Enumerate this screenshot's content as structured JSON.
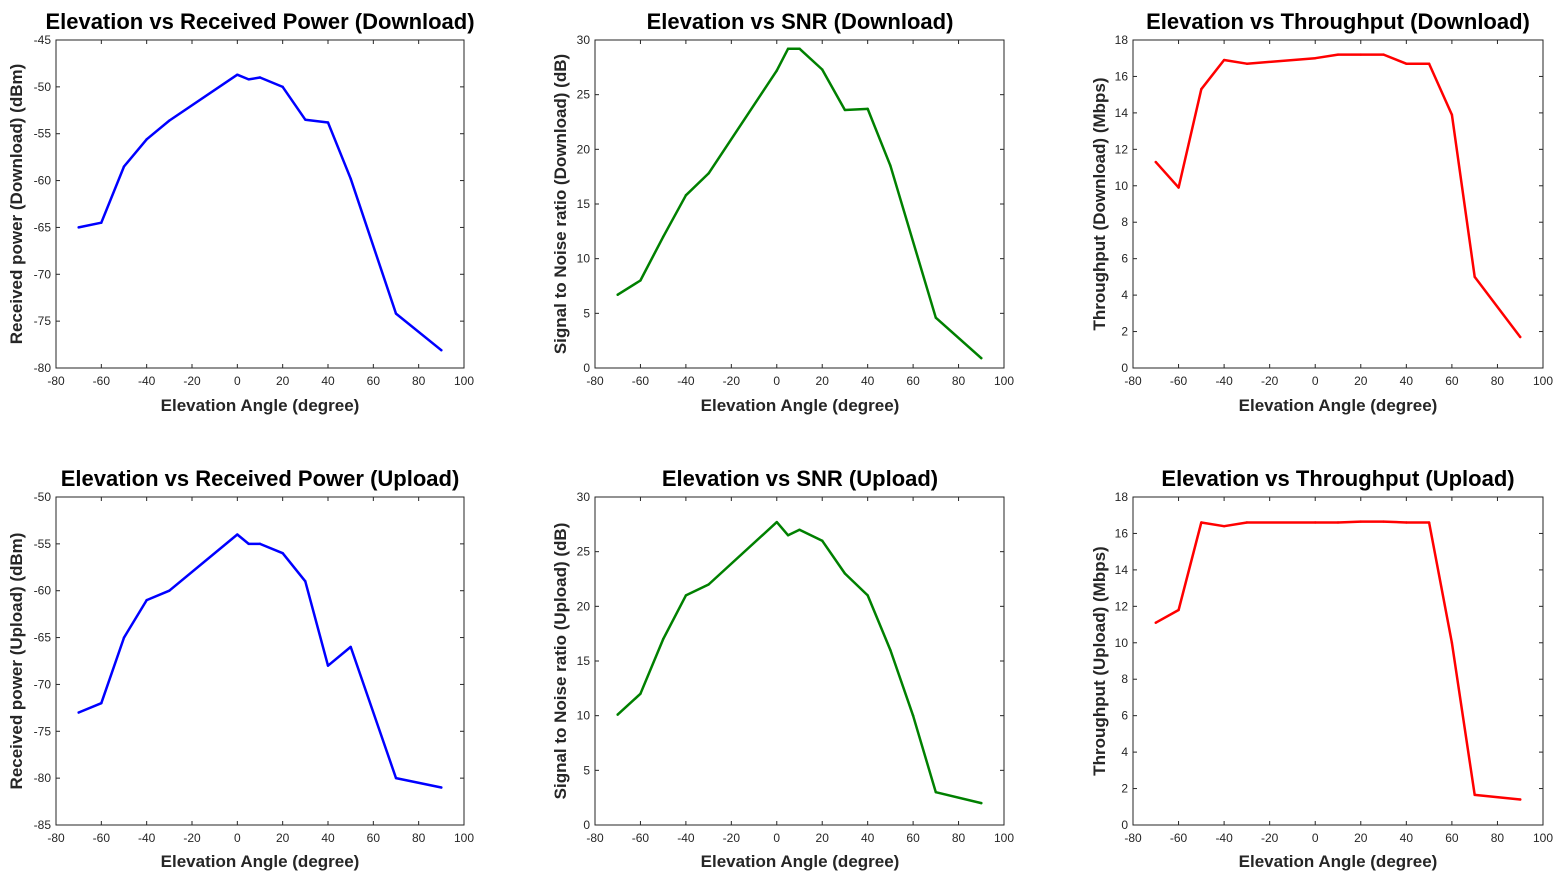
{
  "figure": {
    "background": "#ffffff"
  },
  "chart_data": [
    {
      "type": "line",
      "title": "Elevation vs Received Power (Download)",
      "xlabel": "Elevation Angle (degree)",
      "ylabel": "Received power (Download) (dBm)",
      "xlim": [
        -80,
        100
      ],
      "ylim": [
        -80,
        -45
      ],
      "xticks": [
        -80,
        -60,
        -40,
        -20,
        0,
        20,
        40,
        60,
        80,
        100
      ],
      "yticks": [
        -80,
        -75,
        -70,
        -65,
        -60,
        -55,
        -50,
        -45
      ],
      "grid": true,
      "color": "#0000ff",
      "x": [
        -70,
        -60,
        -50,
        -40,
        -30,
        0,
        5,
        10,
        20,
        30,
        40,
        50,
        70,
        90
      ],
      "y": [
        -65,
        -64.5,
        -58.5,
        -55.6,
        -53.6,
        -48.7,
        -49.2,
        -49,
        -50,
        -53.5,
        -53.8,
        -59.8,
        -74.2,
        -78.1
      ]
    },
    {
      "type": "line",
      "title": "Elevation vs SNR (Download)",
      "xlabel": "Elevation Angle (degree)",
      "ylabel": "Signal to Noise ratio (Download) (dB)",
      "xlim": [
        -80,
        100
      ],
      "ylim": [
        0,
        30
      ],
      "xticks": [
        -80,
        -60,
        -40,
        -20,
        0,
        20,
        40,
        60,
        80,
        100
      ],
      "yticks": [
        0,
        5,
        10,
        15,
        20,
        25,
        30
      ],
      "grid": true,
      "color": "#008000",
      "x": [
        -70,
        -60,
        -50,
        -40,
        -30,
        0,
        5,
        10,
        20,
        30,
        40,
        50,
        70,
        90
      ],
      "y": [
        6.7,
        8,
        12,
        15.8,
        17.8,
        27.2,
        29.2,
        29.2,
        27.3,
        23.6,
        23.7,
        18.5,
        4.6,
        0.9
      ]
    },
    {
      "type": "line",
      "title": "Elevation vs Throughput (Download)",
      "xlabel": "Elevation Angle (degree)",
      "ylabel": "Throughput (Download) (Mbps)",
      "xlim": [
        -80,
        100
      ],
      "ylim": [
        0,
        18
      ],
      "xticks": [
        -80,
        -60,
        -40,
        -20,
        0,
        20,
        40,
        60,
        80,
        100
      ],
      "yticks": [
        0,
        2,
        4,
        6,
        8,
        10,
        12,
        14,
        16,
        18
      ],
      "grid": true,
      "color": "#ff0000",
      "x": [
        -70,
        -60,
        -50,
        -40,
        -30,
        0,
        10,
        20,
        30,
        40,
        50,
        60,
        70,
        90
      ],
      "y": [
        11.3,
        9.9,
        15.3,
        16.9,
        16.7,
        17,
        17.2,
        17.2,
        17.2,
        16.7,
        16.7,
        13.9,
        5,
        1.7
      ]
    },
    {
      "type": "line",
      "title": "Elevation vs Received Power (Upload)",
      "xlabel": "Elevation Angle (degree)",
      "ylabel": "Received power (Upload) (dBm)",
      "xlim": [
        -80,
        100
      ],
      "ylim": [
        -85,
        -50
      ],
      "xticks": [
        -80,
        -60,
        -40,
        -20,
        0,
        20,
        40,
        60,
        80,
        100
      ],
      "yticks": [
        -85,
        -80,
        -75,
        -70,
        -65,
        -60,
        -55,
        -50
      ],
      "grid": true,
      "color": "#0000ff",
      "x": [
        -70,
        -60,
        -50,
        -40,
        -30,
        0,
        5,
        10,
        20,
        30,
        40,
        50,
        70,
        90
      ],
      "y": [
        -73,
        -72,
        -65,
        -61,
        -60,
        -54,
        -55,
        -55,
        -56,
        -59,
        -68,
        -66,
        -80,
        -81
      ]
    },
    {
      "type": "line",
      "title": "Elevation vs SNR (Upload)",
      "xlabel": "Elevation Angle (degree)",
      "ylabel": "Signal to Noise ratio (Upload) (dB)",
      "xlim": [
        -80,
        100
      ],
      "ylim": [
        0,
        30
      ],
      "xticks": [
        -80,
        -60,
        -40,
        -20,
        0,
        20,
        40,
        60,
        80,
        100
      ],
      "yticks": [
        0,
        5,
        10,
        15,
        20,
        25,
        30
      ],
      "grid": true,
      "color": "#008000",
      "x": [
        -70,
        -60,
        -50,
        -40,
        -30,
        0,
        5,
        10,
        20,
        30,
        40,
        50,
        60,
        70,
        90
      ],
      "y": [
        10.1,
        12,
        17,
        21,
        22,
        27.7,
        26.5,
        27,
        26,
        23,
        21,
        16,
        10,
        3,
        2
      ]
    },
    {
      "type": "line",
      "title": "Elevation vs Throughput (Upload)",
      "xlabel": "Elevation Angle (degree)",
      "ylabel": "Throughput (Upload) (Mbps)",
      "xlim": [
        -80,
        100
      ],
      "ylim": [
        0,
        18
      ],
      "xticks": [
        -80,
        -60,
        -40,
        -20,
        0,
        20,
        40,
        60,
        80,
        100
      ],
      "yticks": [
        0,
        2,
        4,
        6,
        8,
        10,
        12,
        14,
        16,
        18
      ],
      "grid": true,
      "color": "#ff0000",
      "x": [
        -70,
        -60,
        -50,
        -40,
        -30,
        0,
        10,
        20,
        30,
        40,
        50,
        60,
        70,
        90
      ],
      "y": [
        11.1,
        11.8,
        16.6,
        16.4,
        16.6,
        16.6,
        16.6,
        16.65,
        16.65,
        16.6,
        16.6,
        10,
        1.65,
        1.4
      ]
    }
  ]
}
